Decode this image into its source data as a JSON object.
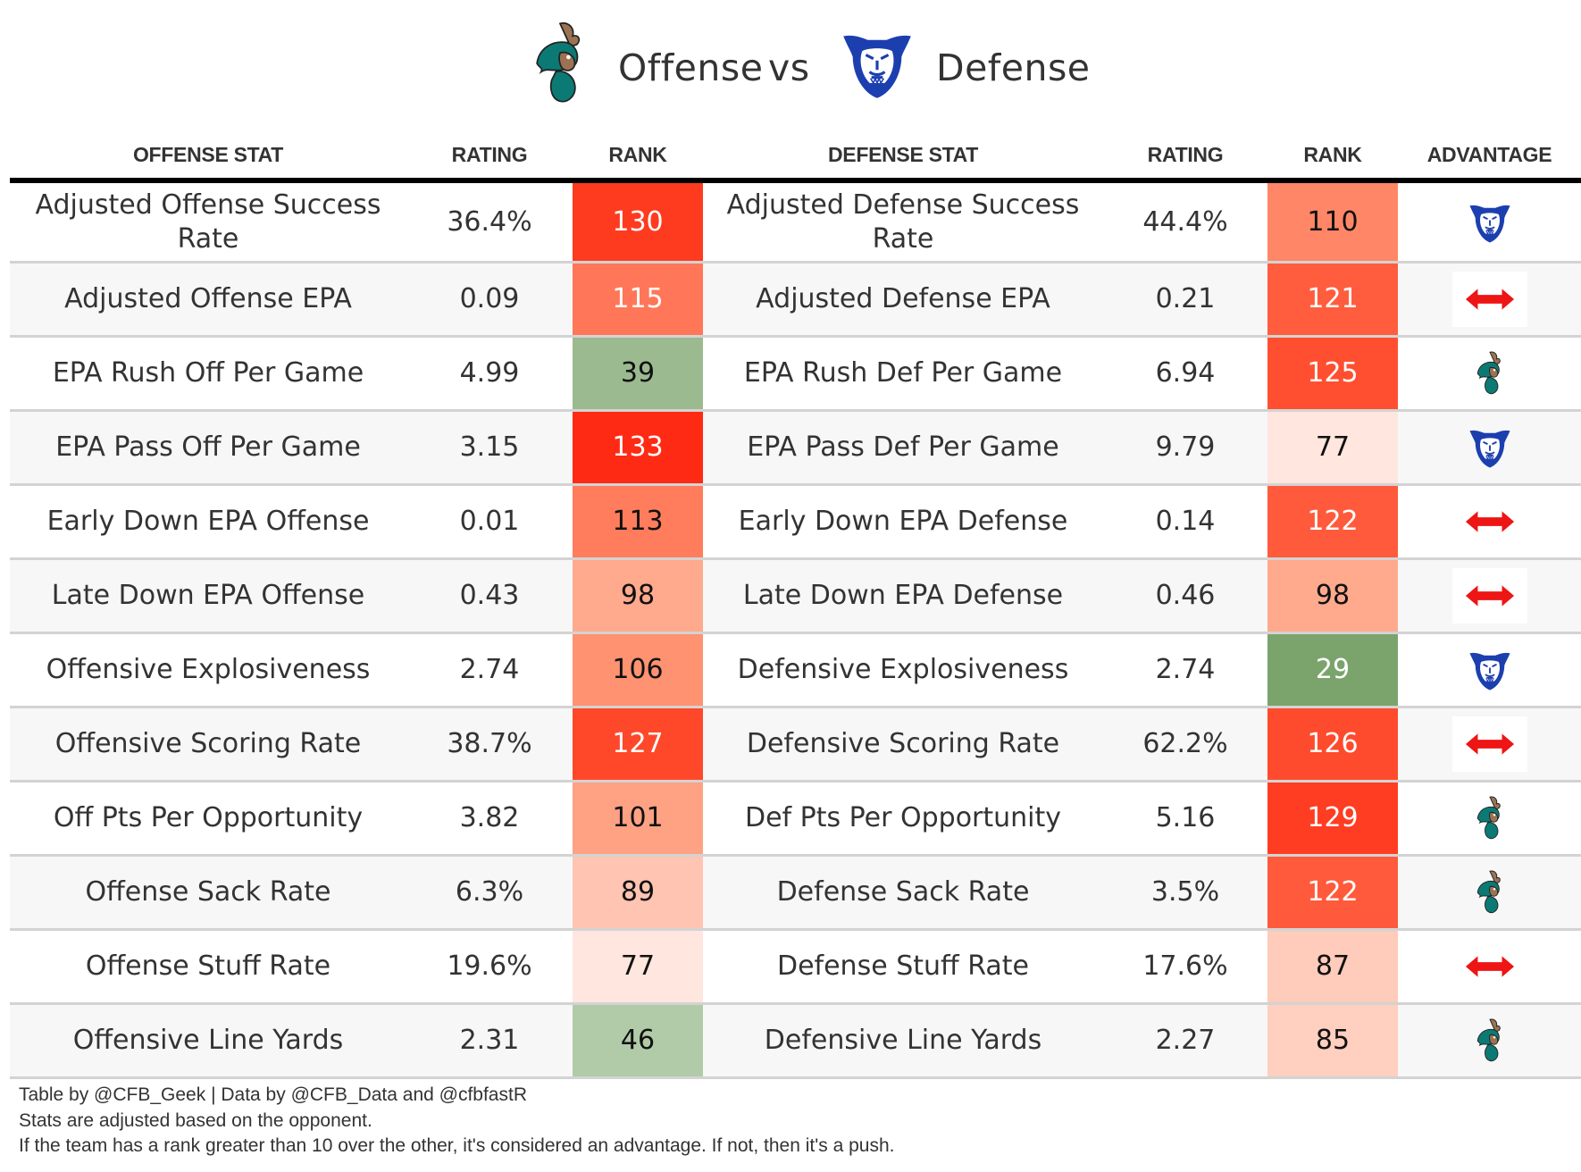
{
  "title": {
    "offense_word": "Offense",
    "vs_word": "vs",
    "defense_word": "Defense",
    "offense_team_logo": "chanticleer-logo",
    "defense_team_logo": "panther-logo"
  },
  "columns": {
    "offense_stat": "OFFENSE STAT",
    "offense_rating": "RATING",
    "offense_rank": "RANK",
    "defense_stat": "DEFENSE STAT",
    "defense_rating": "RATING",
    "defense_rank": "RANK",
    "advantage": "ADVANTAGE"
  },
  "colors": {
    "header_rule": "#000000",
    "row_alt_bg": "#f7f7f7",
    "row_divider": "#d3d3d3",
    "push_arrow": "#ee1515",
    "offense_team_teal": "#0b7a75",
    "offense_team_brown": "#9b7352",
    "defense_team_blue": "#1c3fb0"
  },
  "rows": [
    {
      "offense_stat": "Adjusted Offense Success Rate",
      "offense_rating": "36.4%",
      "offense_rank": "130",
      "offense_rank_color": "#ff3b1f",
      "offense_rank_text_color": "#ffffff",
      "defense_stat": "Adjusted Defense Success Rate",
      "defense_rating": "44.4%",
      "defense_rank": "110",
      "defense_rank_color": "#ff8666",
      "defense_rank_text_color": "#111111",
      "advantage": "defense",
      "advantage_icon": "panther-logo"
    },
    {
      "offense_stat": "Adjusted Offense EPA",
      "offense_rating": "0.09",
      "offense_rank": "115",
      "offense_rank_color": "#ff7758",
      "offense_rank_text_color": "#ffffff",
      "defense_stat": "Adjusted Defense EPA",
      "defense_rating": "0.21",
      "defense_rank": "121",
      "defense_rank_color": "#ff5d3e",
      "defense_rank_text_color": "#ffffff",
      "advantage": "push",
      "advantage_icon": "double-arrow"
    },
    {
      "offense_stat": "EPA Rush Off Per Game",
      "offense_rating": "4.99",
      "offense_rank": "39",
      "offense_rank_color": "#9cba90",
      "offense_rank_text_color": "#111111",
      "defense_stat": "EPA Rush Def Per Game",
      "defense_rating": "6.94",
      "defense_rank": "125",
      "defense_rank_color": "#ff4f30",
      "defense_rank_text_color": "#ffffff",
      "advantage": "offense",
      "advantage_icon": "chanticleer-logo"
    },
    {
      "offense_stat": "EPA Pass Off Per Game",
      "offense_rating": "3.15",
      "offense_rank": "133",
      "offense_rank_color": "#ff2a14",
      "offense_rank_text_color": "#ffffff",
      "defense_stat": "EPA Pass Def Per Game",
      "defense_rating": "9.79",
      "defense_rank": "77",
      "defense_rank_color": "#ffe6de",
      "defense_rank_text_color": "#111111",
      "advantage": "defense",
      "advantage_icon": "panther-logo"
    },
    {
      "offense_stat": "Early Down EPA Offense",
      "offense_rating": "0.01",
      "offense_rank": "113",
      "offense_rank_color": "#ff7d5c",
      "offense_rank_text_color": "#111111",
      "defense_stat": "Early Down EPA Defense",
      "defense_rating": "0.14",
      "defense_rank": "122",
      "defense_rank_color": "#ff5a3b",
      "defense_rank_text_color": "#ffffff",
      "advantage": "push",
      "advantage_icon": "double-arrow"
    },
    {
      "offense_stat": "Late Down EPA Offense",
      "offense_rating": "0.43",
      "offense_rank": "98",
      "offense_rank_color": "#ffa98d",
      "offense_rank_text_color": "#111111",
      "defense_stat": "Late Down EPA Defense",
      "defense_rating": "0.46",
      "defense_rank": "98",
      "defense_rank_color": "#ffa98d",
      "defense_rank_text_color": "#111111",
      "advantage": "push",
      "advantage_icon": "double-arrow"
    },
    {
      "offense_stat": "Offensive Explosiveness",
      "offense_rating": "2.74",
      "offense_rank": "106",
      "offense_rank_color": "#ff9270",
      "offense_rank_text_color": "#111111",
      "defense_stat": "Defensive Explosiveness",
      "defense_rating": "2.74",
      "defense_rank": "29",
      "defense_rank_color": "#7ba46c",
      "defense_rank_text_color": "#ffffff",
      "advantage": "defense",
      "advantage_icon": "panther-logo"
    },
    {
      "offense_stat": "Offensive Scoring Rate",
      "offense_rating": "38.7%",
      "offense_rank": "127",
      "offense_rank_color": "#ff482a",
      "offense_rank_text_color": "#ffffff",
      "defense_stat": "Defensive Scoring Rate",
      "defense_rating": "62.2%",
      "defense_rank": "126",
      "defense_rank_color": "#ff4b2d",
      "defense_rank_text_color": "#ffffff",
      "advantage": "push",
      "advantage_icon": "double-arrow"
    },
    {
      "offense_stat": "Off Pts Per Opportunity",
      "offense_rating": "3.82",
      "offense_rank": "101",
      "offense_rank_color": "#ffa183",
      "offense_rank_text_color": "#111111",
      "defense_stat": "Def Pts Per Opportunity",
      "defense_rating": "5.16",
      "defense_rank": "129",
      "defense_rank_color": "#ff3d22",
      "defense_rank_text_color": "#ffffff",
      "advantage": "offense",
      "advantage_icon": "chanticleer-logo"
    },
    {
      "offense_stat": "Offense Sack Rate",
      "offense_rating": "6.3%",
      "offense_rank": "89",
      "offense_rank_color": "#ffc4b2",
      "offense_rank_text_color": "#111111",
      "defense_stat": "Defense Sack Rate",
      "defense_rating": "3.5%",
      "defense_rank": "122",
      "defense_rank_color": "#ff5a3b",
      "defense_rank_text_color": "#ffffff",
      "advantage": "offense",
      "advantage_icon": "chanticleer-logo"
    },
    {
      "offense_stat": "Offense Stuff Rate",
      "offense_rating": "19.6%",
      "offense_rank": "77",
      "offense_rank_color": "#ffe6de",
      "offense_rank_text_color": "#111111",
      "defense_stat": "Defense Stuff Rate",
      "defense_rating": "17.6%",
      "defense_rank": "87",
      "defense_rank_color": "#ffcbba",
      "defense_rank_text_color": "#111111",
      "advantage": "push",
      "advantage_icon": "double-arrow"
    },
    {
      "offense_stat": "Offensive Line Yards",
      "offense_rating": "2.31",
      "offense_rank": "46",
      "offense_rank_color": "#b1cba8",
      "offense_rank_text_color": "#111111",
      "defense_stat": "Defensive Line Yards",
      "defense_rating": "2.27",
      "defense_rank": "85",
      "defense_rank_color": "#ffcfbf",
      "defense_rank_text_color": "#111111",
      "advantage": "offense",
      "advantage_icon": "chanticleer-logo"
    }
  ],
  "footer": {
    "line1": "Table by @CFB_Geek | Data by @CFB_Data and @cfbfastR",
    "line2": "Stats are adjusted based on the opponent.",
    "line3": "If the team has a rank greater than 10 over the other, it's considered an advantage. If not, then it's a push."
  }
}
